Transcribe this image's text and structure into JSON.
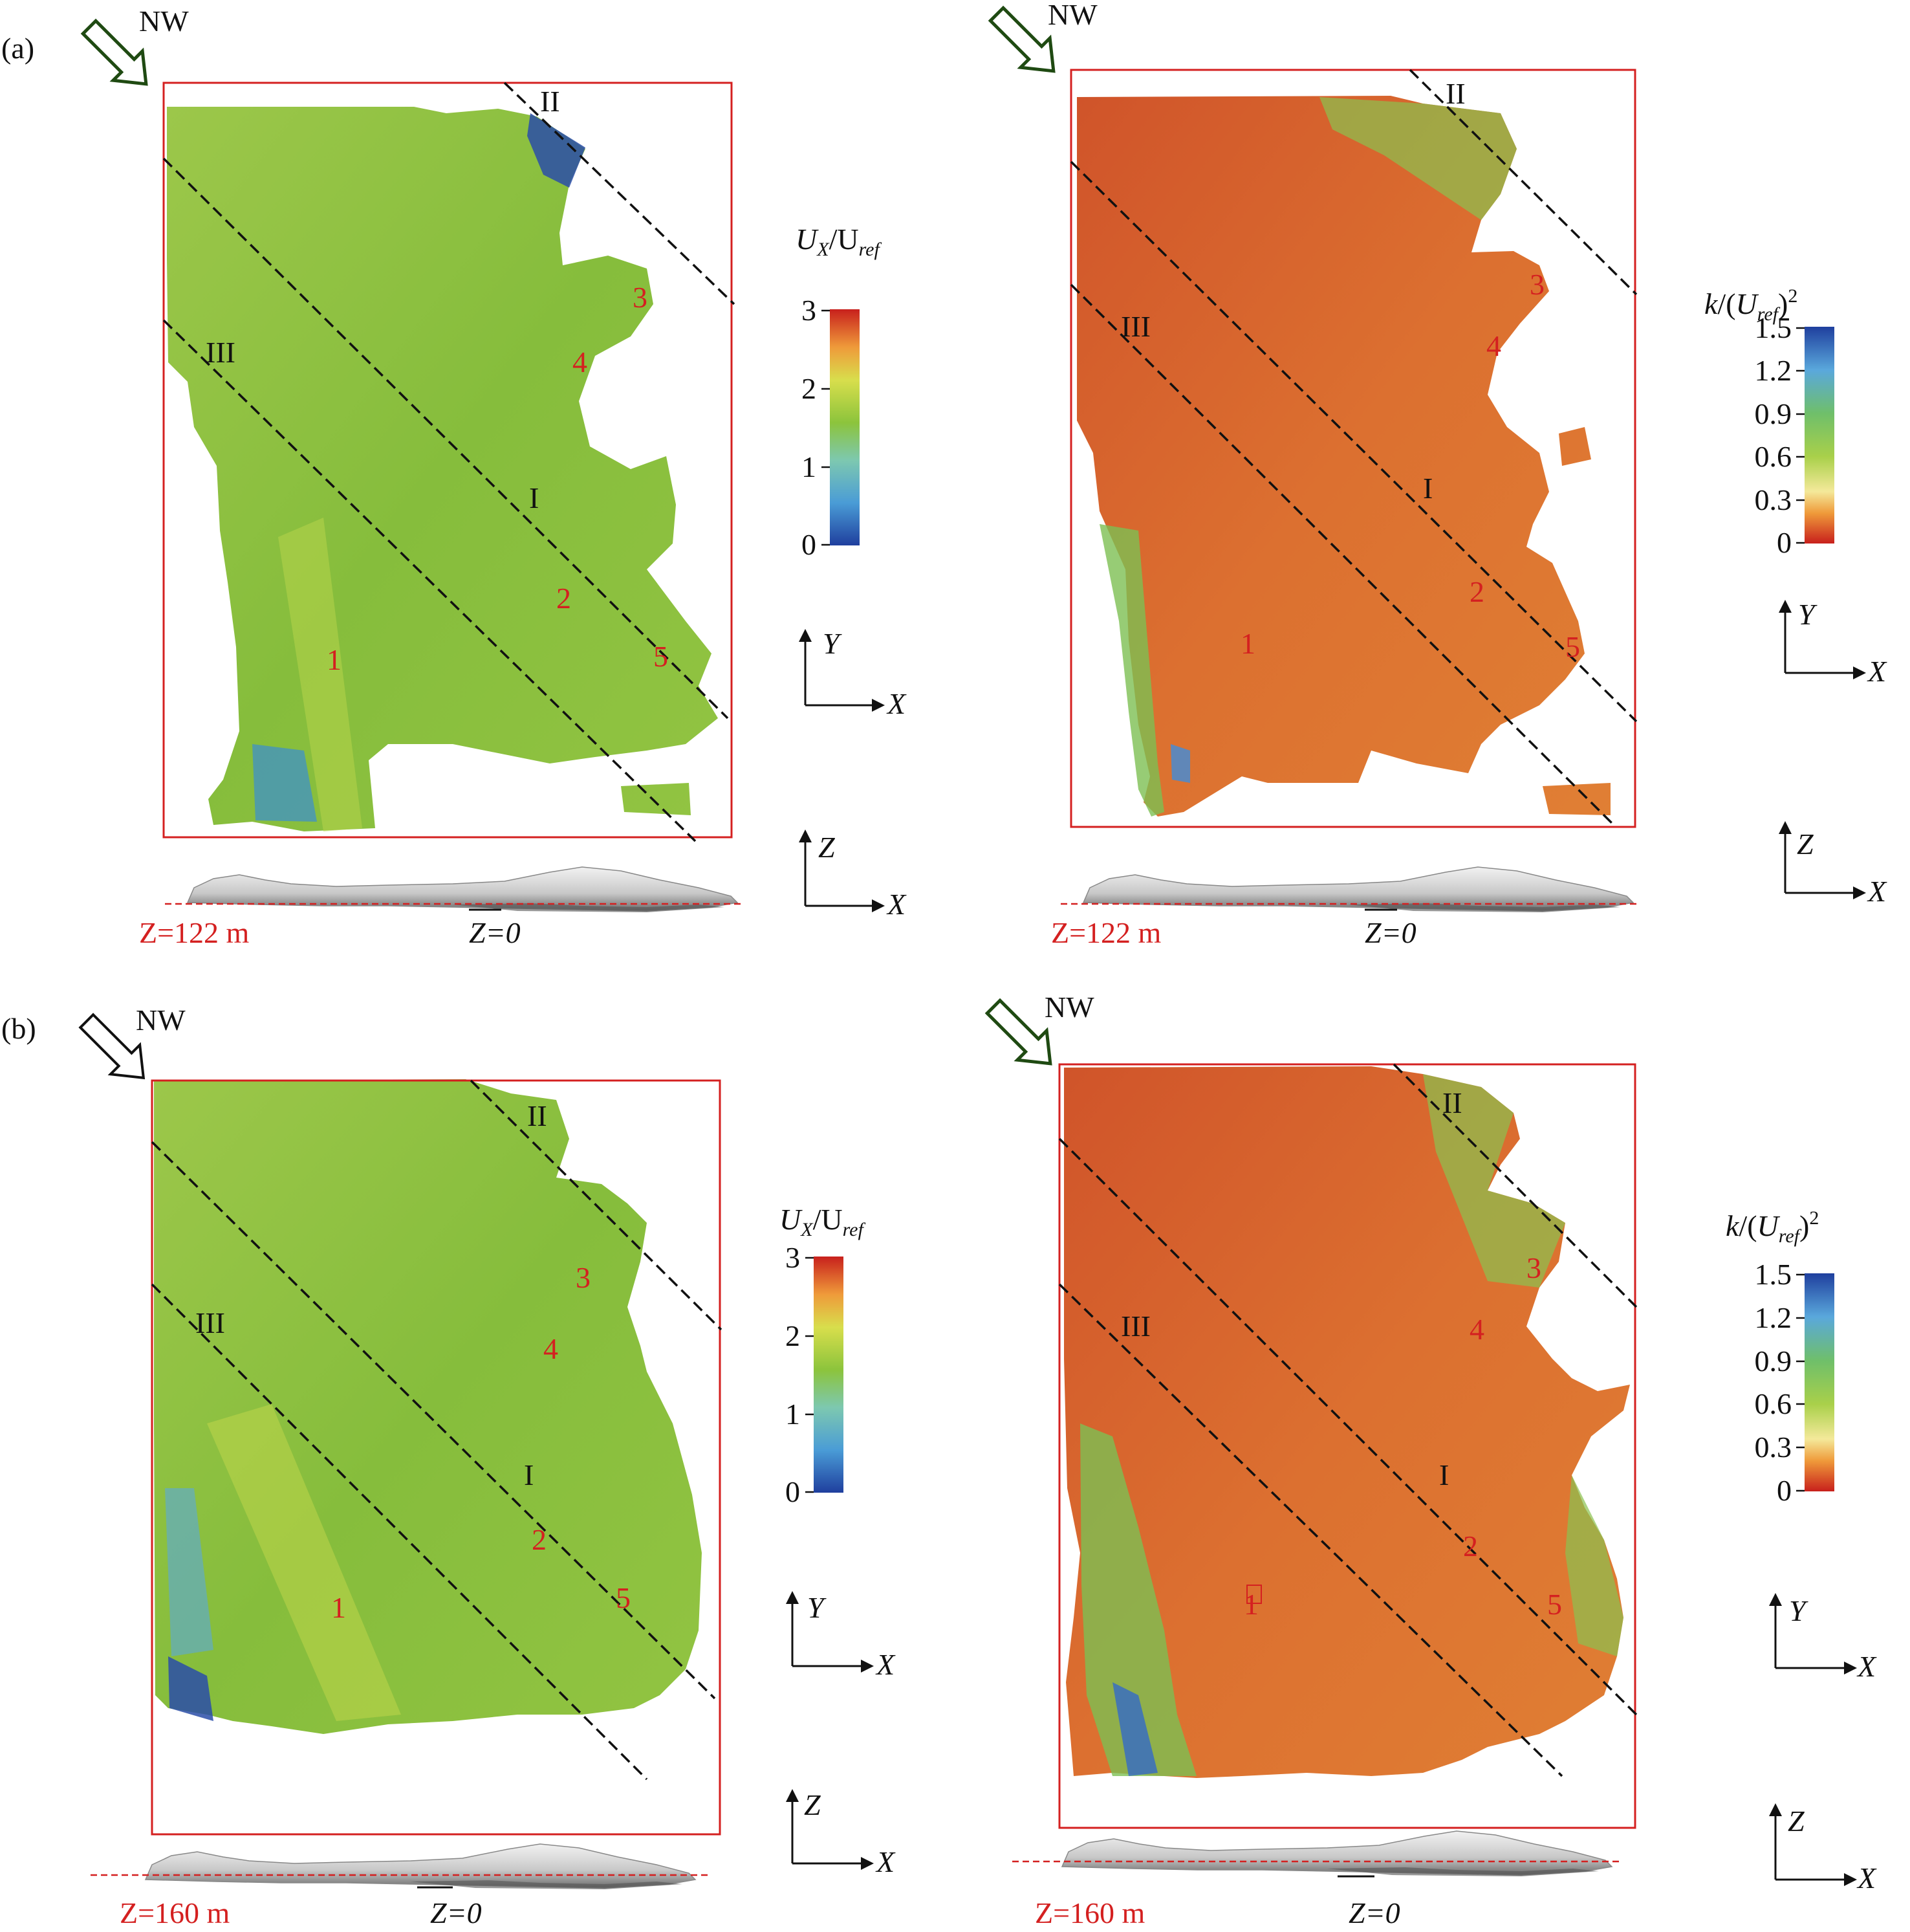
{
  "rows": [
    {
      "row_label": "(a)",
      "z_label": "Z=122 m",
      "z0_label": "Z=0",
      "left": {
        "wind": "NW",
        "colorbar": {
          "title": "U_X/U_ref",
          "ticks": [
            "3",
            "2",
            "1",
            "0"
          ],
          "scheme": "velocity"
        },
        "lines": [
          "I",
          "II",
          "III"
        ],
        "points": [
          "1",
          "2",
          "3",
          "4",
          "5"
        ]
      },
      "right": {
        "wind": "NW",
        "colorbar": {
          "title": "k/(U_ref)²",
          "ticks": [
            "1.5",
            "1.2",
            "0.9",
            "0.6",
            "0.3",
            "0"
          ],
          "scheme": "tke"
        },
        "lines": [
          "I",
          "II",
          "III"
        ],
        "points": [
          "1",
          "2",
          "3",
          "4",
          "5"
        ]
      }
    },
    {
      "row_label": "(b)",
      "z_label": "Z=160 m",
      "z0_label": "Z=0",
      "left": {
        "wind": "NW",
        "colorbar": {
          "title": "U_X/U_ref",
          "ticks": [
            "3",
            "2",
            "1",
            "0"
          ],
          "scheme": "velocity"
        },
        "lines": [
          "I",
          "II",
          "III"
        ],
        "points": [
          "1",
          "2",
          "3",
          "4",
          "5"
        ]
      },
      "right": {
        "wind": "NW",
        "colorbar": {
          "title": "k/(U_ref)²",
          "ticks": [
            "1.5",
            "1.2",
            "0.9",
            "0.6",
            "0.3",
            "0"
          ],
          "scheme": "tke"
        },
        "lines": [
          "I",
          "II",
          "III"
        ],
        "points": [
          "1",
          "2",
          "3",
          "4",
          "5"
        ]
      }
    }
  ],
  "axes": {
    "x": "X",
    "y": "Y",
    "z": "Z"
  },
  "colors": {
    "frame": "#d42020",
    "label_red": "#d42020",
    "velocity_field": "#8cbf3a",
    "tke_field": "#d8662a",
    "arrow_green": "#1f4a12",
    "arrow_black": "#111111"
  }
}
